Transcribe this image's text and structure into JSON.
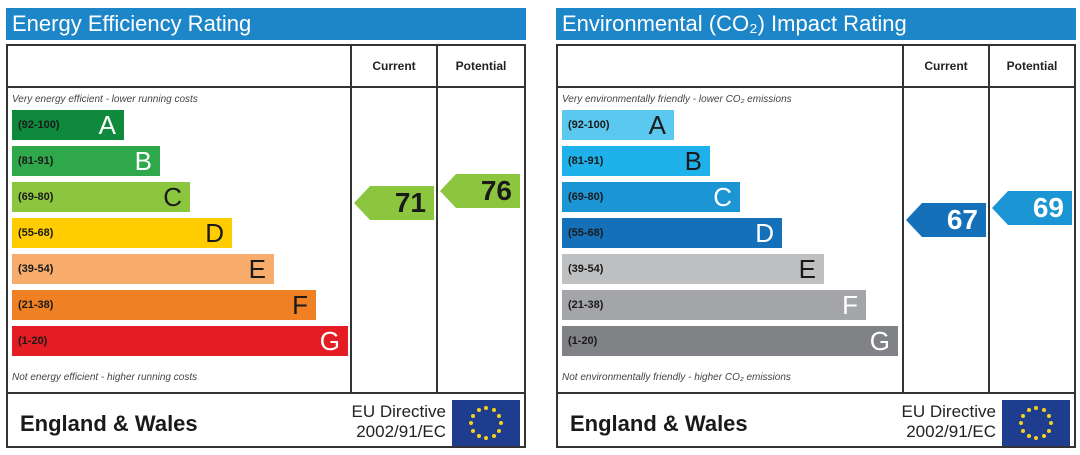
{
  "chart_data": [
    {
      "type": "bar",
      "title": "Energy Efficiency Rating",
      "column_headers": [
        "Current",
        "Potential"
      ],
      "top_note": "Very energy efficient - lower running costs",
      "bottom_note": "Not energy efficient - higher running costs",
      "bands": [
        {
          "range": "(92-100)",
          "letter": "A",
          "color": "#0f8a3c",
          "light": true
        },
        {
          "range": "(81-91)",
          "letter": "B",
          "color": "#2ea84a",
          "light": true
        },
        {
          "range": "(69-80)",
          "letter": "C",
          "color": "#8cc63f",
          "light": false
        },
        {
          "range": "(55-68)",
          "letter": "D",
          "color": "#ffcc00",
          "light": false
        },
        {
          "range": "(39-54)",
          "letter": "E",
          "color": "#f7ac6b",
          "light": false
        },
        {
          "range": "(21-38)",
          "letter": "F",
          "color": "#ef8023",
          "light": false
        },
        {
          "range": "(1-20)",
          "letter": "G",
          "color": "#e31d23",
          "light": true
        }
      ],
      "current": {
        "value": 71,
        "color": "#8cc63f",
        "text_color": "#1a1a1a"
      },
      "potential": {
        "value": 76,
        "color": "#8cc63f",
        "text_color": "#1a1a1a"
      },
      "footer": {
        "region": "England & Wales",
        "directive_line1": "EU Directive",
        "directive_line2": "2002/91/EC"
      }
    },
    {
      "type": "bar",
      "title": "Environmental (CO₂) Impact Rating",
      "column_headers": [
        "Current",
        "Potential"
      ],
      "top_note": "Very environmentally friendly - lower CO₂ emissions",
      "bottom_note": "Not environmentally friendly - higher CO₂ emissions",
      "bands": [
        {
          "range": "(92-100)",
          "letter": "A",
          "color": "#5bc8f0",
          "light": false
        },
        {
          "range": "(81-91)",
          "letter": "B",
          "color": "#1fb2ea",
          "light": false
        },
        {
          "range": "(69-80)",
          "letter": "C",
          "color": "#1c95d4",
          "light": true
        },
        {
          "range": "(55-68)",
          "letter": "D",
          "color": "#1470b8",
          "light": true
        },
        {
          "range": "(39-54)",
          "letter": "E",
          "color": "#bfc0c2",
          "light": false
        },
        {
          "range": "(21-38)",
          "letter": "F",
          "color": "#a3a5a8",
          "light": true
        },
        {
          "range": "(1-20)",
          "letter": "G",
          "color": "#808285",
          "light": true
        }
      ],
      "current": {
        "value": 67,
        "color": "#1470b8",
        "text_color": "#ffffff"
      },
      "potential": {
        "value": 69,
        "color": "#1c95d4",
        "text_color": "#ffffff"
      },
      "footer": {
        "region": "England & Wales",
        "directive_line1": "EU Directive",
        "directive_line2": "2002/91/EC"
      }
    }
  ]
}
